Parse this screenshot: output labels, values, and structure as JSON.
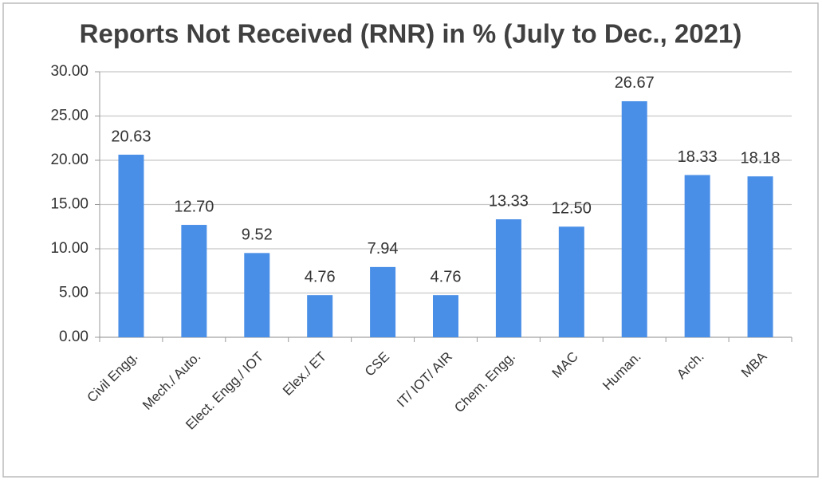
{
  "chart_data": {
    "type": "bar",
    "title": "Reports Not Received (RNR) in % (July to Dec., 2021)",
    "categories": [
      "Civil Engg.",
      "Mech./ Auto.",
      "Elect. Engg./ IOT",
      "Elex./ ET",
      "CSE",
      "IT/ IOT/ AIR",
      "Chem. Engg.",
      "MAC",
      "Human.",
      "Arch.",
      "MBA"
    ],
    "values": [
      20.63,
      12.7,
      9.52,
      4.76,
      7.94,
      4.76,
      13.33,
      12.5,
      26.67,
      18.33,
      18.18
    ],
    "value_labels": [
      "20.63",
      "12.70",
      "9.52",
      "4.76",
      "7.94",
      "4.76",
      "13.33",
      "12.50",
      "26.67",
      "18.33",
      "18.18"
    ],
    "color": "#4a8fe7",
    "ylim": [
      0,
      30
    ],
    "yticks": [
      {
        "value": 0,
        "label": "0.00"
      },
      {
        "value": 5,
        "label": "5.00"
      },
      {
        "value": 10,
        "label": "10.00"
      },
      {
        "value": 15,
        "label": "15.00"
      },
      {
        "value": 20,
        "label": "20.00"
      },
      {
        "value": 25,
        "label": "25.00"
      },
      {
        "value": 30,
        "label": "30.00"
      }
    ],
    "grid": true
  }
}
